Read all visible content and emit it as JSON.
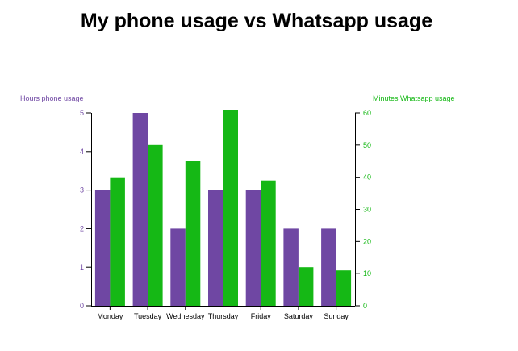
{
  "chart_data": {
    "type": "bar",
    "title": "My phone usage vs Whatsapp usage",
    "categories": [
      "Monday",
      "Tuesday",
      "Wednesday",
      "Thursday",
      "Friday",
      "Saturday",
      "Sunday"
    ],
    "series": [
      {
        "name": "Hours phone usage",
        "axis": "left",
        "color": "#6f47a3",
        "values": [
          3,
          5,
          2,
          3,
          3,
          2,
          2
        ]
      },
      {
        "name": "Minutes Whatsapp usage",
        "axis": "right",
        "color": "#15b815",
        "values": [
          40,
          50,
          45,
          61,
          39,
          12,
          11
        ]
      }
    ],
    "y_left": {
      "label": "Hours phone usage",
      "range": [
        0,
        5
      ],
      "ticks": [
        "0",
        "1",
        "2",
        "3",
        "4",
        "5"
      ],
      "color": "#6f47a3"
    },
    "y_right": {
      "label": "Minutes Whatsapp usage",
      "range": [
        0,
        60
      ],
      "ticks": [
        "0",
        "10",
        "20",
        "30",
        "40",
        "50",
        "60"
      ],
      "color": "#15b815"
    },
    "grid": false,
    "legend": "none"
  }
}
